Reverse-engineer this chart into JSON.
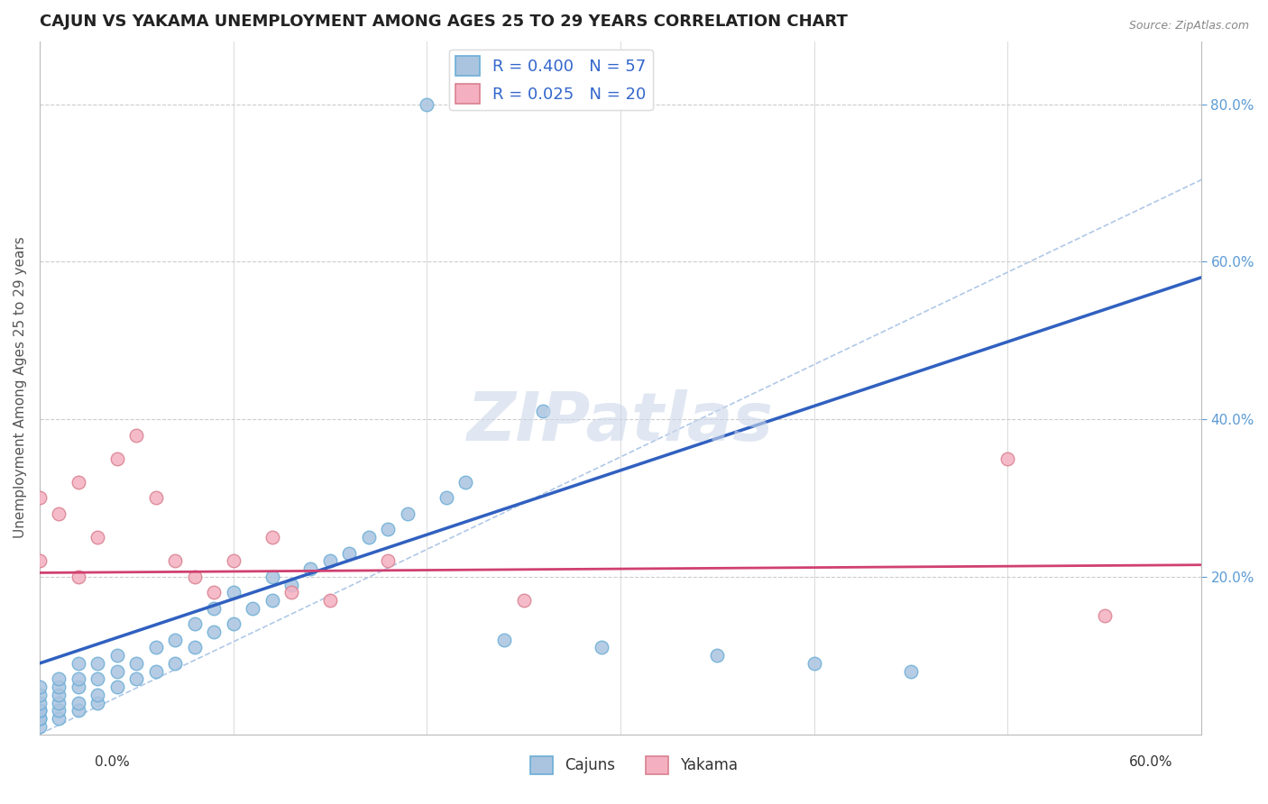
{
  "title": "CAJUN VS YAKAMA UNEMPLOYMENT AMONG AGES 25 TO 29 YEARS CORRELATION CHART",
  "source": "Source: ZipAtlas.com",
  "ylabel": "Unemployment Among Ages 25 to 29 years",
  "right_yticks": [
    "80.0%",
    "60.0%",
    "40.0%",
    "20.0%"
  ],
  "right_ytick_vals": [
    0.8,
    0.6,
    0.4,
    0.2
  ],
  "xlim": [
    0.0,
    0.6
  ],
  "ylim": [
    0.0,
    0.88
  ],
  "cajun_color": "#aac4e0",
  "cajun_edge": "#6baed6",
  "yakama_color": "#f4b0c0",
  "yakama_edge": "#d98090",
  "trend_cajun_color": "#3060c0",
  "trend_yakama_color": "#d04070",
  "diagonal_color": "#b0c8e8",
  "watermark": "ZIPatlas",
  "watermark_color": "#ccd8ea",
  "legend_cajun_label": "R = 0.400   N = 57",
  "legend_yakama_label": "R = 0.025   N = 20",
  "bottom_legend_cajun": "Cajuns",
  "bottom_legend_yakama": "Yakama",
  "cajun_x": [
    0.0,
    0.0,
    0.0,
    0.0,
    0.0,
    0.0,
    0.0,
    0.0,
    0.01,
    0.01,
    0.01,
    0.01,
    0.01,
    0.01,
    0.02,
    0.02,
    0.02,
    0.02,
    0.02,
    0.03,
    0.03,
    0.03,
    0.03,
    0.04,
    0.04,
    0.04,
    0.05,
    0.05,
    0.06,
    0.06,
    0.07,
    0.07,
    0.08,
    0.08,
    0.09,
    0.09,
    0.1,
    0.1,
    0.11,
    0.12,
    0.12,
    0.13,
    0.14,
    0.15,
    0.16,
    0.17,
    0.18,
    0.19,
    0.2,
    0.21,
    0.22,
    0.24,
    0.26,
    0.29,
    0.35,
    0.4,
    0.45
  ],
  "cajun_y": [
    0.01,
    0.02,
    0.02,
    0.03,
    0.03,
    0.04,
    0.05,
    0.06,
    0.02,
    0.03,
    0.04,
    0.05,
    0.06,
    0.07,
    0.03,
    0.04,
    0.06,
    0.07,
    0.09,
    0.04,
    0.05,
    0.07,
    0.09,
    0.06,
    0.08,
    0.1,
    0.07,
    0.09,
    0.08,
    0.11,
    0.09,
    0.12,
    0.11,
    0.14,
    0.13,
    0.16,
    0.14,
    0.18,
    0.16,
    0.17,
    0.2,
    0.19,
    0.21,
    0.22,
    0.23,
    0.25,
    0.26,
    0.28,
    0.8,
    0.3,
    0.32,
    0.12,
    0.41,
    0.11,
    0.1,
    0.09,
    0.08
  ],
  "yakama_x": [
    0.0,
    0.0,
    0.01,
    0.02,
    0.02,
    0.03,
    0.04,
    0.05,
    0.06,
    0.07,
    0.08,
    0.09,
    0.1,
    0.12,
    0.13,
    0.15,
    0.18,
    0.25,
    0.5,
    0.55
  ],
  "yakama_y": [
    0.22,
    0.3,
    0.28,
    0.2,
    0.32,
    0.25,
    0.35,
    0.38,
    0.3,
    0.22,
    0.2,
    0.18,
    0.22,
    0.25,
    0.18,
    0.17,
    0.22,
    0.17,
    0.35,
    0.15
  ],
  "cajun_trend_x0": 0.0,
  "cajun_trend_y0": 0.09,
  "cajun_trend_x1": 0.6,
  "cajun_trend_y1": 0.58,
  "yakama_trend_x0": 0.0,
  "yakama_trend_y0": 0.205,
  "yakama_trend_x1": 0.6,
  "yakama_trend_y1": 0.215,
  "background_color": "#ffffff",
  "grid_color": "#cccccc"
}
